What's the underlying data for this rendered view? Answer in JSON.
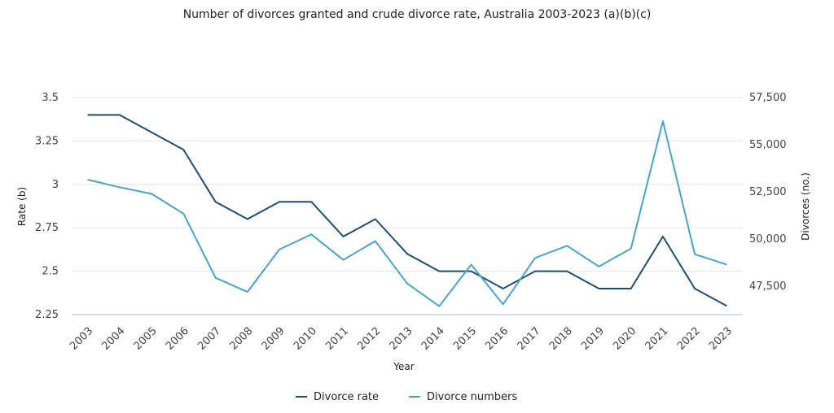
{
  "chart_data": {
    "type": "line",
    "title": "Number of divorces granted and crude divorce rate, Australia 2003-2023 (a)(b)(c)",
    "xlabel": "Year",
    "ylabel": "Rate (b)",
    "y2label": "Divorces (no.)",
    "categories": [
      "2003",
      "2004",
      "2005",
      "2006",
      "2007",
      "2008",
      "2009",
      "2010",
      "2011",
      "2012",
      "2013",
      "2014",
      "2015",
      "2016",
      "2017",
      "2018",
      "2019",
      "2020",
      "2021",
      "2022",
      "2023"
    ],
    "ylim": [
      2.25,
      3.5
    ],
    "y_ticks": [
      "2.25",
      "2.5",
      "2.75",
      "3",
      "3.25",
      "3.5"
    ],
    "y2lim": [
      46000,
      57500
    ],
    "y2_ticks": [
      "47,500",
      "50,000",
      "52,500",
      "55,000",
      "57,500"
    ],
    "grid": true,
    "legend_position": "bottom",
    "series": [
      {
        "name": "Divorce rate",
        "axis": "left",
        "color": "#1f4e6e",
        "values": [
          3.4,
          3.4,
          3.3,
          3.2,
          2.9,
          2.8,
          2.9,
          2.9,
          2.7,
          2.8,
          2.6,
          2.5,
          2.5,
          2.4,
          2.5,
          2.5,
          2.4,
          2.4,
          2.7,
          2.4,
          2.3
        ]
      },
      {
        "name": "Divorce numbers",
        "axis": "right",
        "color": "#4ba3cc",
        "values": [
          53150,
          52750,
          52400,
          51350,
          47950,
          47200,
          49450,
          50250,
          48900,
          49900,
          47650,
          46450,
          48650,
          46550,
          49000,
          49650,
          48550,
          49500,
          56250,
          49200,
          48650
        ]
      }
    ]
  }
}
